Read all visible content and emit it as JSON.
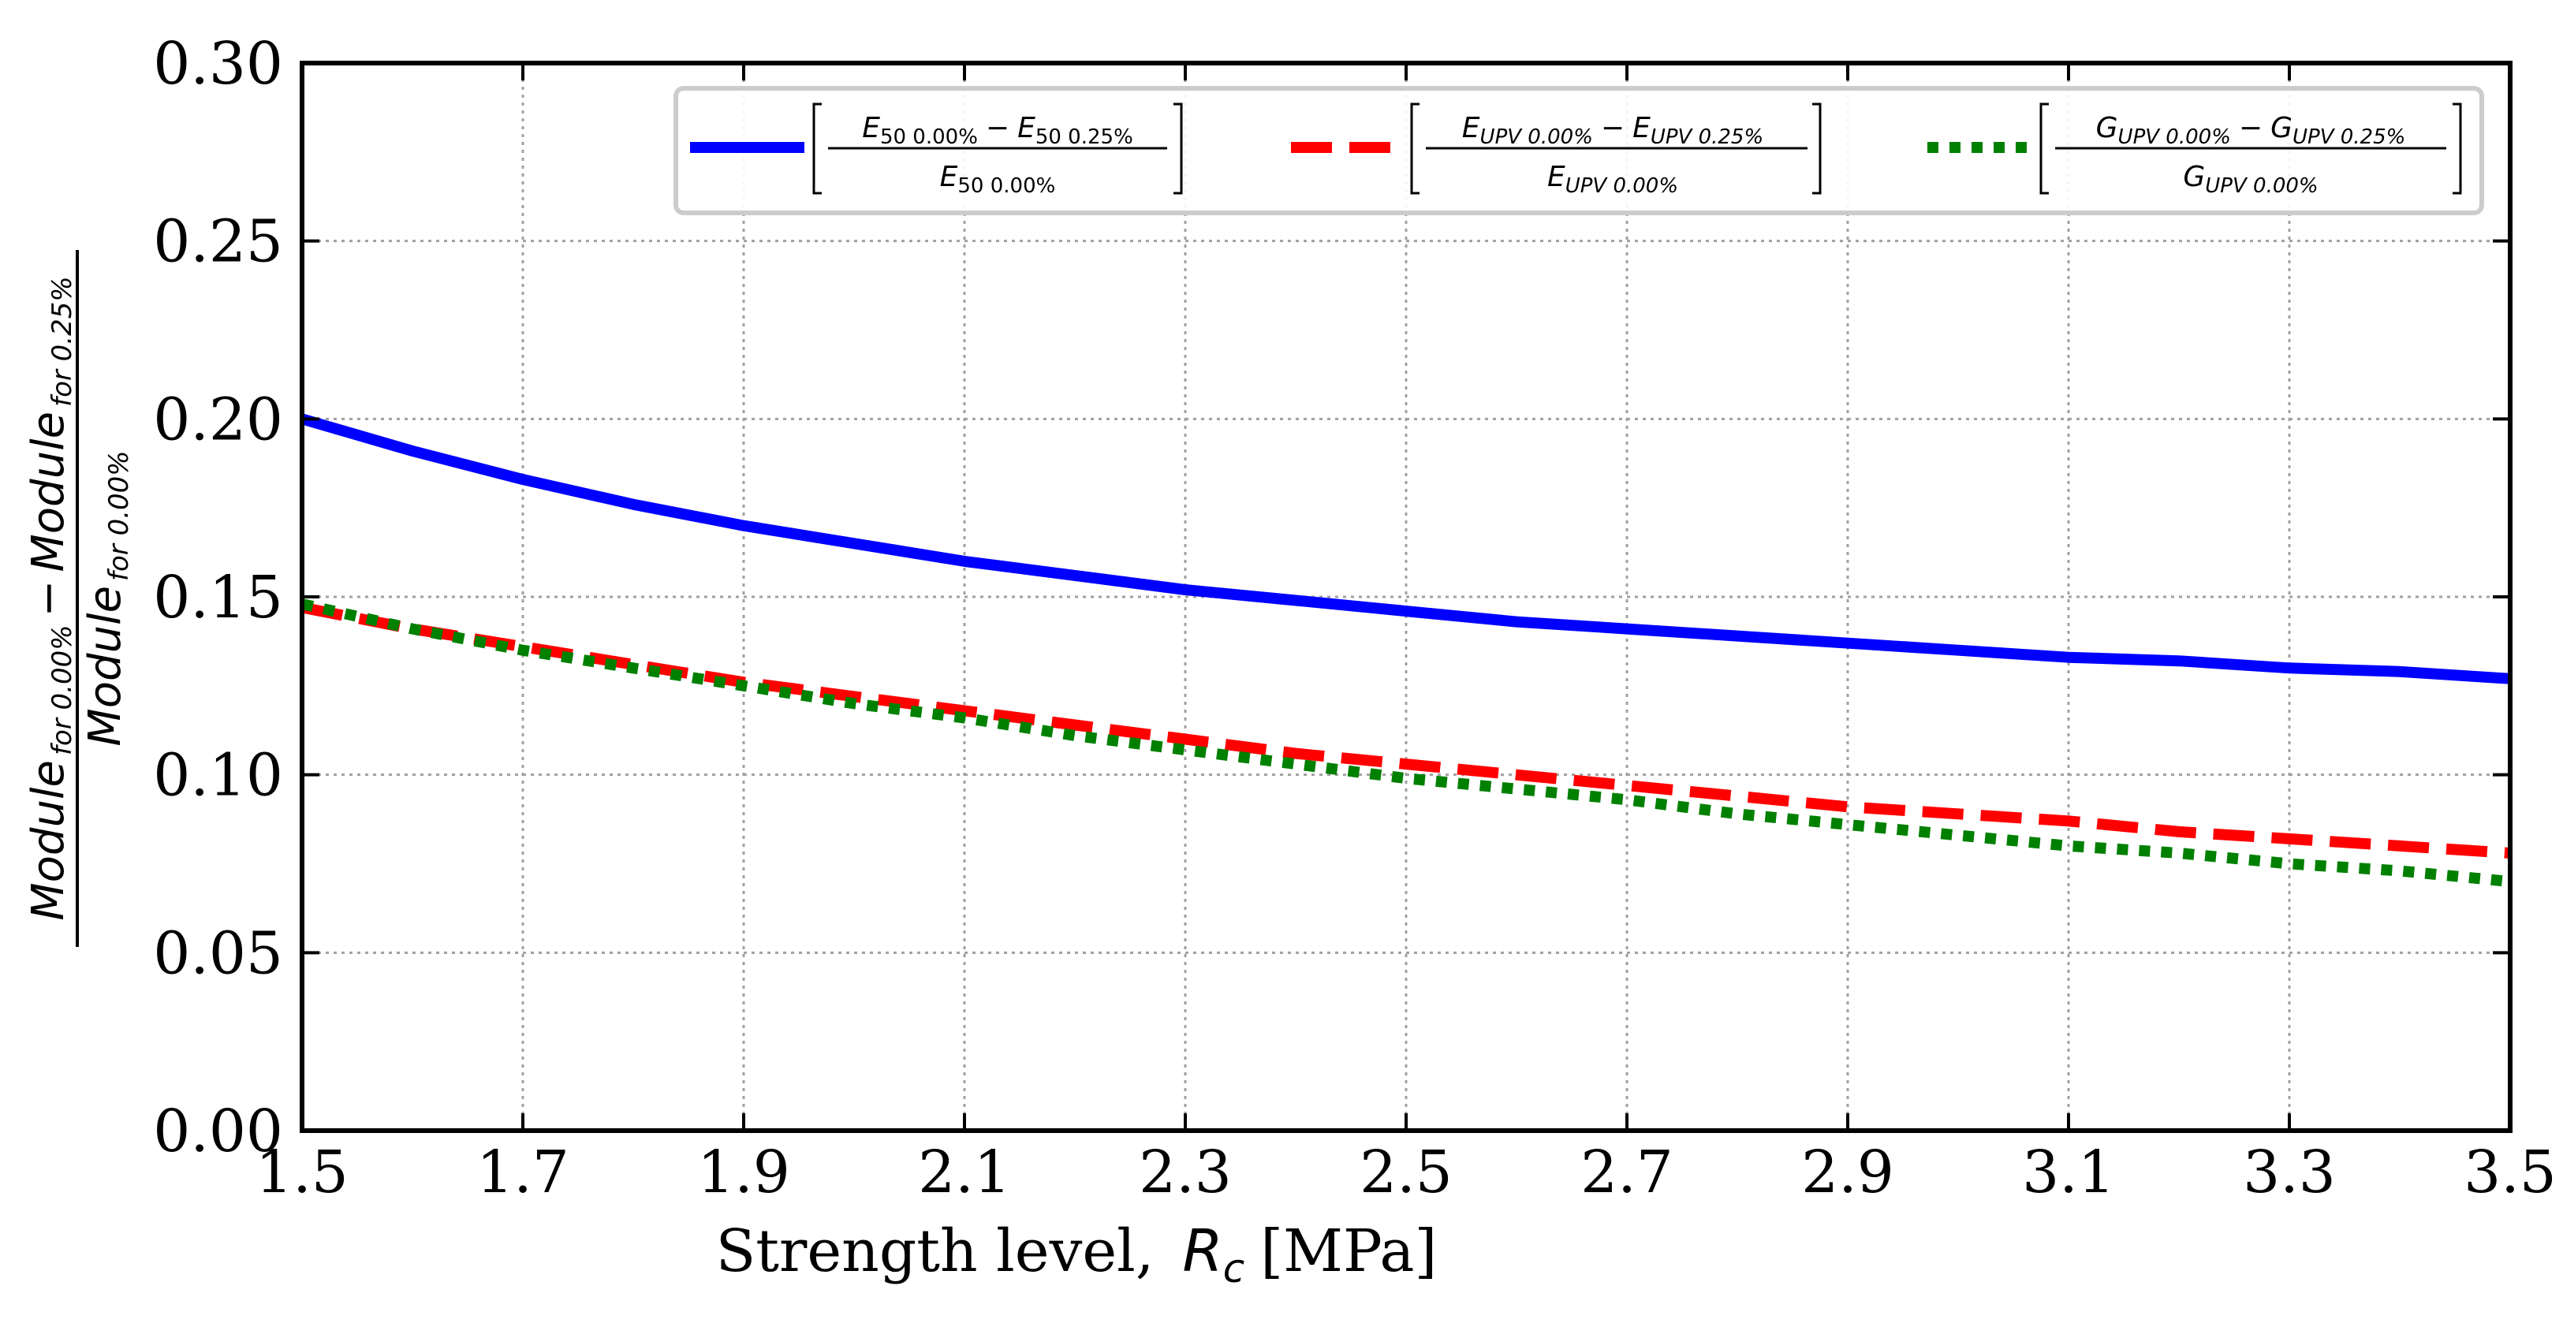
{
  "chart_data": {
    "type": "line",
    "xlabel": "Strength level,",
    "xlabel_symbol": "R",
    "xlabel_symbol_sub": "c",
    "xlabel_unit": "[MPa]",
    "ylabel": {
      "numerator_a": "Module",
      "numerator_a_sub": "for 0.00%",
      "numerator_op": "−",
      "numerator_b": "Module",
      "numerator_b_sub": "for 0.25%",
      "denominator": "Module",
      "denominator_sub": "for 0.00%"
    },
    "xlim": [
      1.5,
      3.5
    ],
    "ylim": [
      0.0,
      0.3
    ],
    "xticks": [
      "1.5",
      "1.7",
      "1.9",
      "2.1",
      "2.3",
      "2.5",
      "2.7",
      "2.9",
      "3.1",
      "3.3",
      "3.5"
    ],
    "yticks": [
      "0.00",
      "0.05",
      "0.10",
      "0.15",
      "0.20",
      "0.25",
      "0.30"
    ],
    "grid": true,
    "legend_position": "top",
    "series": [
      {
        "name": "E50",
        "color": "#0000ff",
        "style": "solid",
        "legend": {
          "num_a": "E",
          "num_a_sub": "50 0.00%",
          "op": "−",
          "num_b": "E",
          "num_b_sub": "50 0.25%",
          "den": "E",
          "den_sub": "50 0.00%"
        },
        "x": [
          1.5,
          1.6,
          1.7,
          1.8,
          1.9,
          2.0,
          2.1,
          2.2,
          2.3,
          2.4,
          2.5,
          2.6,
          2.7,
          2.8,
          2.9,
          3.0,
          3.1,
          3.2,
          3.3,
          3.4,
          3.5
        ],
        "values": [
          0.2,
          0.191,
          0.183,
          0.176,
          0.17,
          0.165,
          0.16,
          0.156,
          0.152,
          0.149,
          0.146,
          0.143,
          0.141,
          0.139,
          0.137,
          0.135,
          0.133,
          0.132,
          0.13,
          0.129,
          0.127
        ]
      },
      {
        "name": "EUPV",
        "color": "#ff0000",
        "style": "dashed",
        "legend": {
          "num_a": "E",
          "num_a_sub": "UPV 0.00%",
          "op": "−",
          "num_b": "E",
          "num_b_sub": "UPV 0.25%",
          "den": "E",
          "den_sub": "UPV 0.00%"
        },
        "x": [
          1.5,
          1.6,
          1.7,
          1.8,
          1.9,
          2.0,
          2.1,
          2.2,
          2.3,
          2.4,
          2.5,
          2.6,
          2.7,
          2.8,
          2.9,
          3.0,
          3.1,
          3.2,
          3.3,
          3.4,
          3.5
        ],
        "values": [
          0.147,
          0.141,
          0.136,
          0.131,
          0.126,
          0.122,
          0.118,
          0.114,
          0.11,
          0.106,
          0.103,
          0.1,
          0.097,
          0.094,
          0.091,
          0.089,
          0.087,
          0.084,
          0.082,
          0.08,
          0.078
        ]
      },
      {
        "name": "GUPV",
        "color": "#008000",
        "style": "dotted",
        "legend": {
          "num_a": "G",
          "num_a_sub": "UPV 0.00%",
          "op": "−",
          "num_b": "G",
          "num_b_sub": "UPV 0.25%",
          "den": "G",
          "den_sub": "UPV 0.00%"
        },
        "x": [
          1.5,
          1.6,
          1.7,
          1.8,
          1.9,
          2.0,
          2.1,
          2.2,
          2.3,
          2.4,
          2.5,
          2.6,
          2.7,
          2.8,
          2.9,
          3.0,
          3.1,
          3.2,
          3.3,
          3.4,
          3.5
        ],
        "values": [
          0.148,
          0.141,
          0.135,
          0.13,
          0.125,
          0.12,
          0.116,
          0.111,
          0.107,
          0.103,
          0.099,
          0.096,
          0.093,
          0.089,
          0.086,
          0.083,
          0.08,
          0.078,
          0.075,
          0.073,
          0.07
        ]
      }
    ]
  }
}
